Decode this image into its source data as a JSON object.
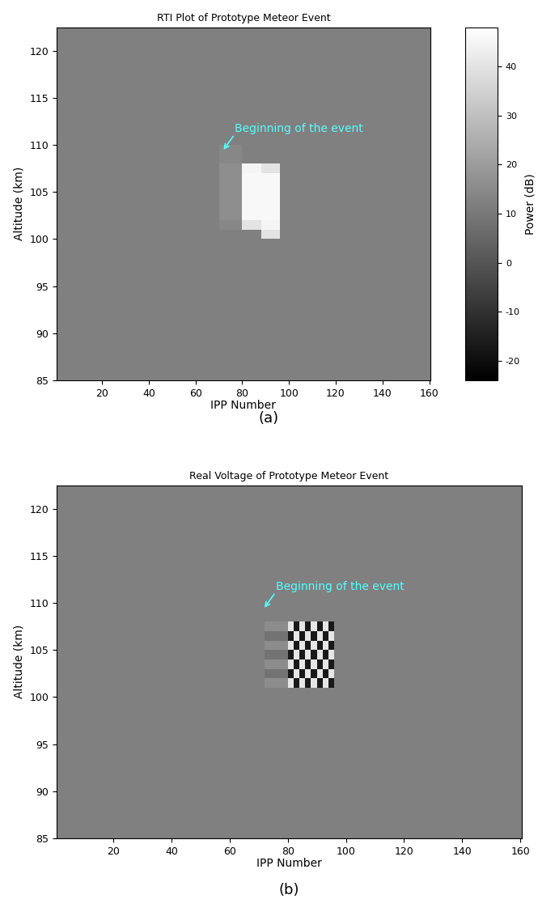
{
  "chart_data": [
    {
      "type": "heatmap",
      "title": "RTI Plot of Prototype Meteor Event",
      "x_label": "IPP Number",
      "y_label": "Altitude (km)",
      "caption": "(a)",
      "xlim": [
        0.5,
        160.5
      ],
      "ylim": [
        85,
        122.5
      ],
      "xticks": [
        20,
        40,
        60,
        80,
        100,
        120,
        140,
        160
      ],
      "yticks": [
        85,
        90,
        95,
        100,
        105,
        110,
        115,
        120
      ],
      "color": "gray",
      "x_edges": [
        0.5,
        70,
        80,
        88,
        96,
        160.5
      ],
      "y_edges": [
        85,
        100,
        101,
        102,
        107,
        108,
        110,
        122.5
      ],
      "cells": [
        [
          12,
          12,
          12,
          12,
          12
        ],
        [
          12,
          12,
          12,
          40,
          12
        ],
        [
          12,
          14,
          40,
          45,
          12
        ],
        [
          12,
          16,
          46,
          46,
          12
        ],
        [
          12,
          16,
          45,
          40,
          12
        ],
        [
          12,
          14,
          12,
          12,
          12
        ],
        [
          12,
          12,
          12,
          12,
          12
        ]
      ],
      "colorbar": {
        "label": "Power (dB)",
        "range": [
          -24,
          48
        ],
        "ticks": [
          -20,
          -10,
          0,
          10,
          20,
          30,
          40
        ]
      },
      "annotation": {
        "text": "Beginning of the event",
        "x": 72,
        "y": 109.5,
        "color": "#55ffff"
      }
    },
    {
      "type": "heatmap",
      "title": "Real Voltage of Prototype Meteor Event",
      "x_label": "IPP Number",
      "y_label": "Altitude (km)",
      "caption": "(b)",
      "xlim": [
        0.5,
        160.5
      ],
      "ylim": [
        85,
        122.5
      ],
      "xticks": [
        20,
        40,
        60,
        80,
        100,
        120,
        140,
        160
      ],
      "yticks": [
        85,
        90,
        95,
        100,
        105,
        110,
        115,
        120
      ],
      "color": "gray",
      "color_range": [
        -1,
        1
      ],
      "x_edges": [
        0.5,
        72,
        80,
        82,
        84,
        86,
        88,
        90,
        92,
        94,
        96,
        160.5
      ],
      "y_edges": [
        85,
        101,
        102,
        103,
        104,
        105,
        106,
        107,
        108,
        122.5
      ],
      "cells": [
        [
          0,
          0,
          0,
          0,
          0,
          0,
          0,
          0,
          0,
          0,
          0
        ],
        [
          0,
          0.1,
          0.8,
          -0.8,
          0.8,
          -0.8,
          0.8,
          -0.8,
          0.8,
          -0.8,
          0
        ],
        [
          0,
          -0.1,
          -0.8,
          0.8,
          -0.8,
          0.8,
          -0.8,
          0.8,
          -0.8,
          0.8,
          0
        ],
        [
          0,
          0.1,
          0.8,
          -0.8,
          0.8,
          -0.8,
          0.8,
          -0.8,
          0.8,
          -0.8,
          0
        ],
        [
          0,
          -0.1,
          -0.8,
          0.8,
          -0.8,
          0.8,
          -0.8,
          0.8,
          -0.8,
          0.8,
          0
        ],
        [
          0,
          0.1,
          0.8,
          -0.8,
          0.8,
          -0.8,
          0.8,
          -0.8,
          0.8,
          -0.8,
          0
        ],
        [
          0,
          -0.1,
          -0.8,
          0.8,
          -0.8,
          0.8,
          -0.8,
          0.8,
          -0.8,
          0.8,
          0
        ],
        [
          0,
          0.1,
          0.8,
          -0.8,
          0.8,
          -0.8,
          0.8,
          -0.8,
          0.8,
          -0.8,
          0
        ],
        [
          0,
          0,
          0,
          0,
          0,
          0,
          0,
          0,
          0,
          0,
          0
        ]
      ],
      "annotation": {
        "text": "Beginning of the event",
        "x": 72,
        "y": 109.5,
        "color": "#55ffff"
      }
    }
  ]
}
